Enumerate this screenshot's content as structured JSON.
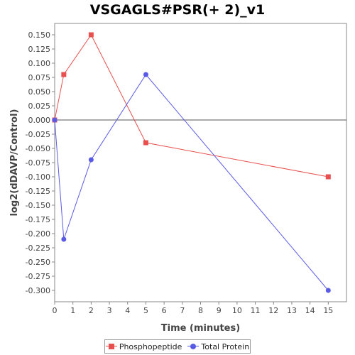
{
  "chart_data": {
    "type": "line",
    "title": "VSGAGLS#PSR(+ 2)_v1",
    "xlabel": "Time (minutes)",
    "ylabel": "log2(dDAVP/Control)",
    "xlim": [
      0,
      16
    ],
    "ylim": [
      -0.32,
      0.17
    ],
    "x_ticks": [
      0,
      1,
      2,
      3,
      4,
      5,
      6,
      7,
      8,
      9,
      10,
      11,
      12,
      13,
      14,
      15
    ],
    "y_ticks": [
      0.15,
      0.125,
      0.1,
      0.075,
      0.05,
      0.025,
      0.0,
      -0.025,
      -0.05,
      -0.075,
      -0.1,
      -0.125,
      -0.15,
      -0.175,
      -0.2,
      -0.225,
      -0.25,
      -0.275,
      -0.3
    ],
    "y_tick_labels": [
      "0.150",
      "0.125",
      "0.100",
      "0.075",
      "0.050",
      "0.025",
      "0.000",
      "-0.025",
      "-0.050",
      "-0.075",
      "-0.100",
      "-0.125",
      "-0.150",
      "-0.175",
      "-0.200",
      "-0.225",
      "-0.250",
      "-0.275",
      "-0.300"
    ],
    "grid": false,
    "legend_position": "bottom",
    "series": [
      {
        "name": "Phosphopeptide",
        "color": "#e8504f",
        "marker": "square",
        "x": [
          0,
          0.5,
          2,
          5,
          15
        ],
        "y": [
          0.0,
          0.08,
          0.15,
          -0.04,
          -0.1
        ]
      },
      {
        "name": "Total Protein",
        "color": "#5a5ae6",
        "marker": "circle",
        "x": [
          0,
          0.5,
          2,
          5,
          15
        ],
        "y": [
          0.0,
          -0.21,
          -0.07,
          0.08,
          -0.3
        ]
      }
    ]
  }
}
